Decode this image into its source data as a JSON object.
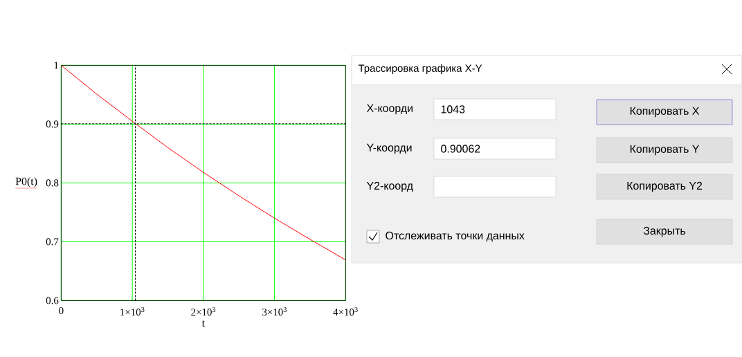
{
  "chart_data": {
    "type": "line",
    "xlabel": "t",
    "ylabel": "P0(t)",
    "x": [
      0,
      500,
      1000,
      1500,
      2000,
      2500,
      3000,
      3500,
      4000
    ],
    "series": [
      {
        "color": "#ff0000",
        "values": [
          1,
          0.951,
          0.905,
          0.86,
          0.818,
          0.778,
          0.74,
          0.704,
          0.669
        ]
      }
    ],
    "xlim": [
      0,
      4000
    ],
    "ylim": [
      0.6,
      1
    ],
    "xticks": [
      0,
      {
        "value": 1000,
        "label": "1×10$^{3}$"
      },
      {
        "value": 2000,
        "label": "2×10$^{3}$"
      },
      {
        "value": 3000,
        "label": "3×10$^{3}$"
      },
      {
        "value": 4000,
        "label": "4×10$^{3}$"
      }
    ],
    "yticks": [
      0.6,
      0.7,
      0.8,
      0.9,
      1
    ],
    "grid": true,
    "ref_lines": [
      {
        "axis": "x",
        "value": 1043,
        "color": "#000000",
        "line_style": "dashed"
      },
      {
        "axis": "y",
        "value": 0.90062,
        "color": "#000000",
        "line_style": "dashed"
      }
    ],
    "annotations": [
      "Трассировка графика X-Y",
      "X-коорди",
      "1043",
      "Y-коорди",
      "0.90062",
      "Y2-коорд",
      "Копировать X",
      "Копировать Y",
      "Копировать Y2",
      "Отслеживать точки данных",
      "Закрыть"
    ]
  }
}
